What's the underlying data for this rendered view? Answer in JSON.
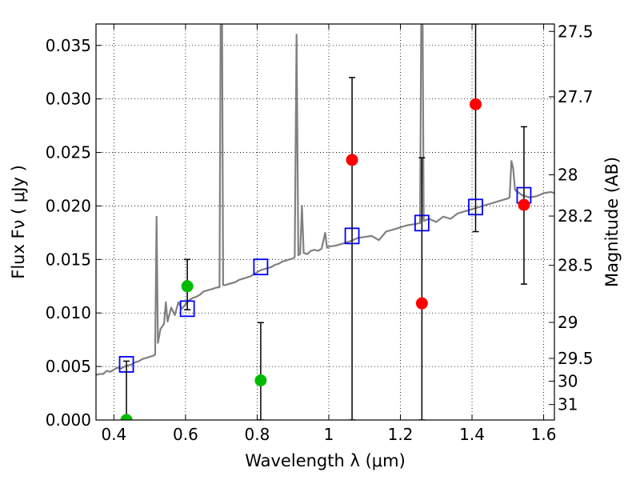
{
  "chart_data": {
    "type": "scatter",
    "xlabel": "Wavelength  λ (μm)",
    "ylabel_left": "Flux  Fν  ( μJy )",
    "ylabel_right": "Magnitude (AB)",
    "xlim": [
      0.35,
      1.63
    ],
    "ylim": [
      0.0,
      0.037
    ],
    "grid": true,
    "x_ticks": [
      {
        "v": 0.4,
        "label": "0.4"
      },
      {
        "v": 0.6,
        "label": "0.6"
      },
      {
        "v": 0.8,
        "label": "0.8"
      },
      {
        "v": 1.0,
        "label": "1"
      },
      {
        "v": 1.2,
        "label": "1.2"
      },
      {
        "v": 1.4,
        "label": "1.4"
      },
      {
        "v": 1.6,
        "label": "1.6"
      }
    ],
    "y_ticks": [
      {
        "v": 0.0,
        "label": "0.000"
      },
      {
        "v": 0.005,
        "label": "0.005"
      },
      {
        "v": 0.01,
        "label": "0.010"
      },
      {
        "v": 0.015,
        "label": "0.015"
      },
      {
        "v": 0.02,
        "label": "0.020"
      },
      {
        "v": 0.025,
        "label": "0.025"
      },
      {
        "v": 0.03,
        "label": "0.030"
      },
      {
        "v": 0.035,
        "label": "0.035"
      }
    ],
    "right_ticks": [
      {
        "mag": 27.5,
        "label": "27.5"
      },
      {
        "mag": 27.7,
        "label": "27.7"
      },
      {
        "mag": 28,
        "label": "28"
      },
      {
        "mag": 28.2,
        "label": "28.2"
      },
      {
        "mag": 28.5,
        "label": "28.5"
      },
      {
        "mag": 29,
        "label": "29"
      },
      {
        "mag": 29.5,
        "label": "29.5"
      },
      {
        "mag": 30,
        "label": "30"
      },
      {
        "mag": 31,
        "label": "31"
      }
    ],
    "template_spectrum": {
      "color": "#808080",
      "points": [
        [
          0.35,
          0.0042
        ],
        [
          0.36,
          0.0043
        ],
        [
          0.37,
          0.0043
        ],
        [
          0.38,
          0.0046
        ],
        [
          0.39,
          0.0045
        ],
        [
          0.4,
          0.0047
        ],
        [
          0.41,
          0.0049
        ],
        [
          0.42,
          0.0048
        ],
        [
          0.43,
          0.005
        ],
        [
          0.44,
          0.0051
        ],
        [
          0.45,
          0.0052
        ],
        [
          0.46,
          0.0054
        ],
        [
          0.47,
          0.0055
        ],
        [
          0.48,
          0.0057
        ],
        [
          0.49,
          0.0058
        ],
        [
          0.5,
          0.0059
        ],
        [
          0.51,
          0.006
        ],
        [
          0.515,
          0.0061
        ],
        [
          0.519,
          0.019
        ],
        [
          0.523,
          0.0072
        ],
        [
          0.53,
          0.0085
        ],
        [
          0.54,
          0.009
        ],
        [
          0.545,
          0.011
        ],
        [
          0.55,
          0.0092
        ],
        [
          0.56,
          0.0105
        ],
        [
          0.57,
          0.0098
        ],
        [
          0.58,
          0.011
        ],
        [
          0.59,
          0.0104
        ],
        [
          0.6,
          0.0108
        ],
        [
          0.61,
          0.0112
        ],
        [
          0.62,
          0.0114
        ],
        [
          0.63,
          0.0115
        ],
        [
          0.64,
          0.0117
        ],
        [
          0.65,
          0.012
        ],
        [
          0.66,
          0.0121
        ],
        [
          0.67,
          0.0122
        ],
        [
          0.68,
          0.0123
        ],
        [
          0.69,
          0.0124
        ],
        [
          0.695,
          0.0124
        ],
        [
          0.698,
          0.037
        ],
        [
          0.702,
          0.037
        ],
        [
          0.705,
          0.0126
        ],
        [
          0.71,
          0.0126
        ],
        [
          0.72,
          0.0127
        ],
        [
          0.73,
          0.0128
        ],
        [
          0.74,
          0.0129
        ],
        [
          0.75,
          0.0131
        ],
        [
          0.76,
          0.0132
        ],
        [
          0.77,
          0.0133
        ],
        [
          0.78,
          0.0134
        ],
        [
          0.79,
          0.0136
        ],
        [
          0.8,
          0.0138
        ],
        [
          0.81,
          0.014
        ],
        [
          0.82,
          0.0141
        ],
        [
          0.83,
          0.0142
        ],
        [
          0.84,
          0.0143
        ],
        [
          0.85,
          0.0145
        ],
        [
          0.86,
          0.0146
        ],
        [
          0.87,
          0.0148
        ],
        [
          0.88,
          0.0149
        ],
        [
          0.89,
          0.015
        ],
        [
          0.9,
          0.0151
        ],
        [
          0.905,
          0.0152
        ],
        [
          0.91,
          0.036
        ],
        [
          0.915,
          0.0154
        ],
        [
          0.92,
          0.0155
        ],
        [
          0.925,
          0.02
        ],
        [
          0.93,
          0.0156
        ],
        [
          0.94,
          0.0155
        ],
        [
          0.95,
          0.0158
        ],
        [
          0.96,
          0.0159
        ],
        [
          0.97,
          0.0158
        ],
        [
          0.98,
          0.016
        ],
        [
          0.99,
          0.0175
        ],
        [
          0.995,
          0.0161
        ],
        [
          1.0,
          0.0162
        ],
        [
          1.02,
          0.0163
        ],
        [
          1.04,
          0.0165
        ],
        [
          1.06,
          0.0167
        ],
        [
          1.08,
          0.017
        ],
        [
          1.1,
          0.0171
        ],
        [
          1.12,
          0.0172
        ],
        [
          1.14,
          0.0168
        ],
        [
          1.16,
          0.0176
        ],
        [
          1.18,
          0.0178
        ],
        [
          1.2,
          0.018
        ],
        [
          1.22,
          0.0182
        ],
        [
          1.24,
          0.0183
        ],
        [
          1.255,
          0.0184
        ],
        [
          1.258,
          0.037
        ],
        [
          1.262,
          0.037
        ],
        [
          1.265,
          0.0186
        ],
        [
          1.28,
          0.0188
        ],
        [
          1.3,
          0.0185
        ],
        [
          1.32,
          0.019
        ],
        [
          1.34,
          0.0188
        ],
        [
          1.36,
          0.0193
        ],
        [
          1.38,
          0.0195
        ],
        [
          1.4,
          0.0197
        ],
        [
          1.42,
          0.0199
        ],
        [
          1.44,
          0.0201
        ],
        [
          1.46,
          0.0203
        ],
        [
          1.48,
          0.0205
        ],
        [
          1.5,
          0.0207
        ],
        [
          1.505,
          0.0208
        ],
        [
          1.51,
          0.0242
        ],
        [
          1.515,
          0.0235
        ],
        [
          1.52,
          0.0215
        ],
        [
          1.54,
          0.021
        ],
        [
          1.56,
          0.0208
        ],
        [
          1.58,
          0.0209
        ],
        [
          1.6,
          0.0212
        ],
        [
          1.62,
          0.0213
        ],
        [
          1.63,
          0.0212
        ]
      ]
    },
    "series": [
      {
        "marker": "square",
        "color": "#0000ff",
        "points": [
          {
            "x": 0.435,
            "y": 0.0052
          },
          {
            "x": 0.605,
            "y": 0.0104
          },
          {
            "x": 0.81,
            "y": 0.0143
          },
          {
            "x": 1.065,
            "y": 0.0172
          },
          {
            "x": 1.26,
            "y": 0.0184
          },
          {
            "x": 1.41,
            "y": 0.0199
          },
          {
            "x": 1.545,
            "y": 0.021
          }
        ]
      },
      {
        "marker": "circle",
        "color": "#00bb00",
        "points": [
          {
            "x": 0.435,
            "y": 0.0,
            "yerr_low": 0.0,
            "yerr_high": 0.0055
          },
          {
            "x": 0.605,
            "y": 0.0125,
            "yerr_low": 0.0103,
            "yerr_high": 0.015
          },
          {
            "x": 0.81,
            "y": 0.0037,
            "yerr_low": 0.0,
            "yerr_high": 0.0091
          }
        ]
      },
      {
        "marker": "circle",
        "color": "#ff0000",
        "points": [
          {
            "x": 1.065,
            "y": 0.0243,
            "yerr_low": 0.0,
            "yerr_high": 0.032
          },
          {
            "x": 1.26,
            "y": 0.0109,
            "yerr_low": 0.0,
            "yerr_high": 0.0245
          },
          {
            "x": 1.41,
            "y": 0.0295,
            "yerr_low": 0.0176,
            "yerr_high": 0.037
          },
          {
            "x": 1.545,
            "y": 0.0201,
            "yerr_low": 0.0127,
            "yerr_high": 0.0274
          }
        ]
      }
    ]
  }
}
